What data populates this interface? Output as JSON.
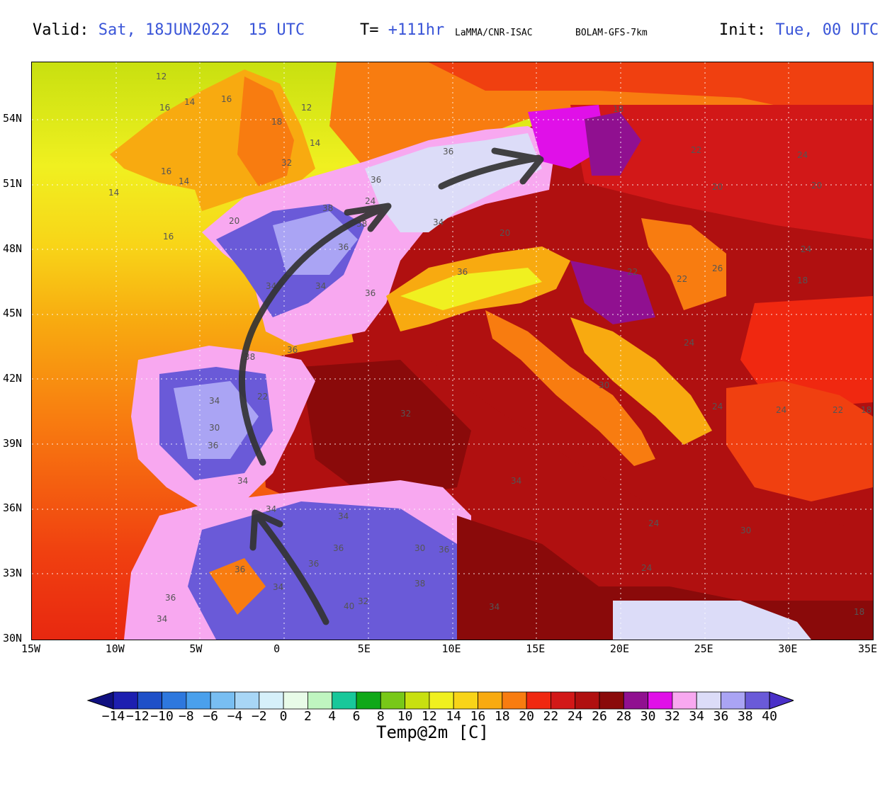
{
  "header": {
    "valid_label": "Valid:",
    "valid_value": "Sat, 18JUN2022  15 UTC",
    "t_label": "T=",
    "t_value": "+111hr",
    "source": "LaMMA/CNR-ISAC",
    "model": "BOLAM-GFS-7km",
    "init_label": "Init:",
    "init_value": "Tue, 00 UTC"
  },
  "map": {
    "lat_ticks": [
      "54N",
      "51N",
      "48N",
      "45N",
      "42N",
      "39N",
      "36N",
      "33N",
      "30N"
    ],
    "lon_ticks": [
      "15W",
      "10W",
      "5W",
      "0",
      "5E",
      "10E",
      "15E",
      "20E",
      "25E",
      "30E",
      "35E"
    ],
    "contour_labels": [
      "12",
      "16",
      "14",
      "16",
      "12",
      "18",
      "14",
      "16",
      "14",
      "14",
      "32",
      "36",
      "36",
      "38",
      "36",
      "34",
      "38",
      "34",
      "36",
      "36",
      "34",
      "36",
      "38",
      "34",
      "36",
      "34",
      "30",
      "22",
      "24",
      "20",
      "18",
      "20",
      "22",
      "24",
      "20",
      "22",
      "22",
      "24",
      "24",
      "20",
      "34",
      "36",
      "34",
      "36",
      "32",
      "36",
      "30",
      "34",
      "40",
      "36",
      "34",
      "38",
      "36",
      "34",
      "32",
      "34",
      "30",
      "30",
      "24",
      "22",
      "24",
      "24",
      "24",
      "18",
      "18",
      "26",
      "16",
      "18"
    ]
  },
  "colorbar": {
    "labels": [
      "-14",
      "-12",
      "-10",
      "-8",
      "-6",
      "-4",
      "-2",
      "0",
      "2",
      "4",
      "6",
      "8",
      "10",
      "12",
      "14",
      "16",
      "18",
      "20",
      "22",
      "24",
      "26",
      "28",
      "30",
      "32",
      "34",
      "36",
      "38",
      "40"
    ],
    "colors": [
      "#1d1fb0",
      "#1f50c8",
      "#2e78de",
      "#4aa0ec",
      "#78bef2",
      "#a8d6f6",
      "#d6f0fa",
      "#e8fbe8",
      "#bff5c0",
      "#18c89a",
      "#10a818",
      "#78c818",
      "#c8e010",
      "#f0f020",
      "#f8d418",
      "#f8aa10",
      "#f87c10",
      "#f02810",
      "#d21818",
      "#b01010",
      "#8a0a0a",
      "#901090",
      "#e010e8",
      "#f8a8f0",
      "#dcdcf8",
      "#aaa4f4",
      "#6a5ad8"
    ],
    "under_color": "#101080",
    "over_color": "#4a30c8",
    "title": "Temp@2m [C]"
  }
}
